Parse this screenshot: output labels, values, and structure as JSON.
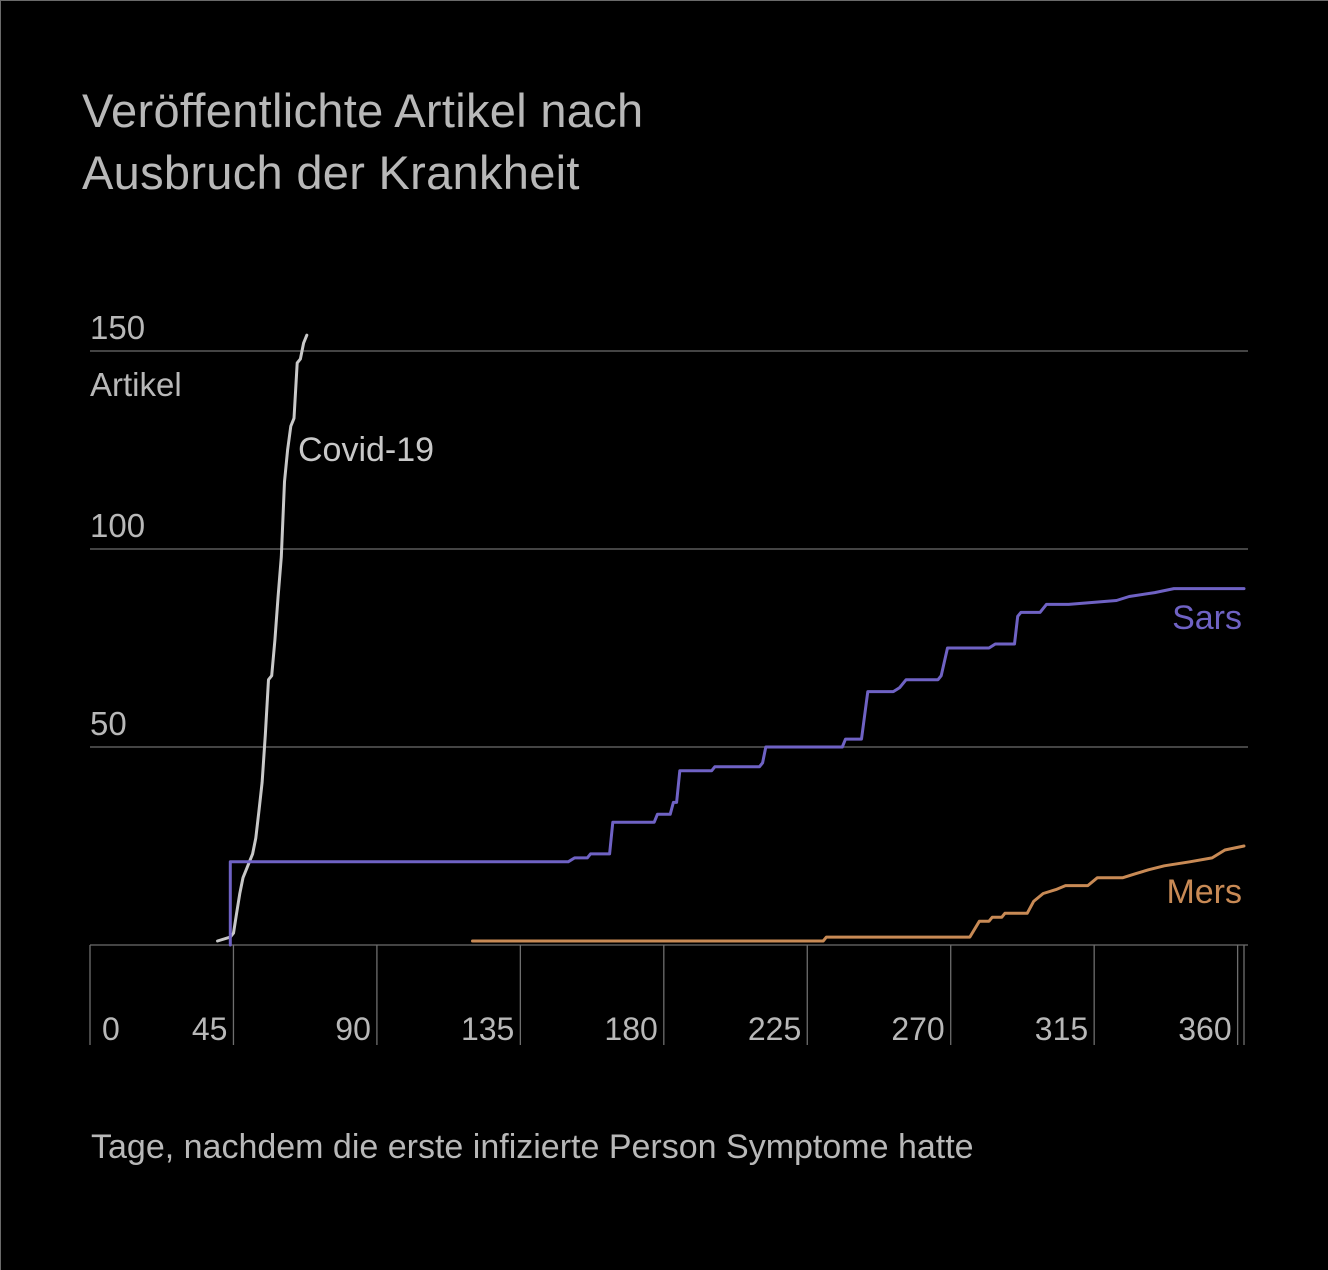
{
  "chart_data": {
    "type": "line",
    "title_lines": [
      "Veröffentlichte Artikel nach",
      "Ausbruch der Krankheit"
    ],
    "xlabel": "Tage, nachdem die erste infizierte Person Symptome hatte",
    "ylabel": "Artikel",
    "xlim": [
      0,
      362
    ],
    "ylim": [
      0,
      150
    ],
    "x_ticks": [
      0,
      45,
      90,
      135,
      180,
      225,
      270,
      315,
      360
    ],
    "y_ticks": [
      50,
      100,
      150
    ],
    "grid": "horizontal",
    "legend": "inline labels",
    "series": [
      {
        "name": "Covid-19",
        "color": "#c8c8c8",
        "step": false,
        "points": [
          [
            40,
            1
          ],
          [
            44,
            2
          ],
          [
            45,
            3
          ],
          [
            46,
            8
          ],
          [
            47,
            13
          ],
          [
            48,
            17
          ],
          [
            49,
            19
          ],
          [
            50,
            21
          ],
          [
            51,
            23
          ],
          [
            52,
            27
          ],
          [
            53,
            34
          ],
          [
            54,
            41
          ],
          [
            55,
            53
          ],
          [
            56,
            67
          ],
          [
            57,
            68
          ],
          [
            58,
            77
          ],
          [
            59,
            88
          ],
          [
            60,
            98
          ],
          [
            61,
            117
          ],
          [
            62,
            125
          ],
          [
            63,
            131
          ],
          [
            64,
            133
          ],
          [
            65,
            147
          ],
          [
            66,
            148
          ],
          [
            67,
            152
          ],
          [
            68,
            154
          ]
        ]
      },
      {
        "name": "Sars",
        "color": "#6f62c4",
        "step": true,
        "points": [
          [
            44,
            0
          ],
          [
            44,
            21
          ],
          [
            70,
            21
          ],
          [
            110,
            21
          ],
          [
            140,
            21
          ],
          [
            150,
            21
          ],
          [
            152,
            22
          ],
          [
            156,
            22
          ],
          [
            157,
            23
          ],
          [
            163,
            23
          ],
          [
            164,
            31
          ],
          [
            177,
            31
          ],
          [
            178,
            33
          ],
          [
            182,
            33
          ],
          [
            183,
            36
          ],
          [
            184,
            36
          ],
          [
            185,
            44
          ],
          [
            190,
            44
          ],
          [
            195,
            44
          ],
          [
            196,
            45
          ],
          [
            207,
            45
          ],
          [
            210,
            45
          ],
          [
            211,
            46
          ],
          [
            212,
            50
          ],
          [
            232,
            50
          ],
          [
            236,
            50
          ],
          [
            237,
            52
          ],
          [
            242,
            52
          ],
          [
            244,
            64
          ],
          [
            252,
            64
          ],
          [
            254,
            65
          ],
          [
            256,
            67
          ],
          [
            266,
            67
          ],
          [
            267,
            68
          ],
          [
            269,
            75
          ],
          [
            282,
            75
          ],
          [
            284,
            76
          ],
          [
            290,
            76
          ],
          [
            291,
            83
          ],
          [
            292,
            84
          ],
          [
            298,
            84
          ],
          [
            300,
            86
          ],
          [
            307,
            86
          ],
          [
            322,
            87
          ],
          [
            326,
            88
          ],
          [
            334,
            89
          ],
          [
            340,
            90
          ],
          [
            362,
            90
          ]
        ]
      },
      {
        "name": "Mers",
        "color": "#c88a55",
        "step": true,
        "points": [
          [
            120,
            1
          ],
          [
            230,
            1
          ],
          [
            231,
            2
          ],
          [
            276,
            2
          ],
          [
            279,
            6
          ],
          [
            282,
            6
          ],
          [
            283,
            7
          ],
          [
            286,
            7
          ],
          [
            287,
            8
          ],
          [
            294,
            8
          ],
          [
            296,
            11
          ],
          [
            299,
            13
          ],
          [
            303,
            14
          ],
          [
            306,
            15
          ],
          [
            313,
            15
          ],
          [
            316,
            17
          ],
          [
            324,
            17
          ],
          [
            328,
            18
          ],
          [
            332,
            19
          ],
          [
            337,
            20
          ],
          [
            345,
            21
          ],
          [
            352,
            22
          ],
          [
            356,
            24
          ],
          [
            362,
            25
          ]
        ]
      }
    ]
  }
}
